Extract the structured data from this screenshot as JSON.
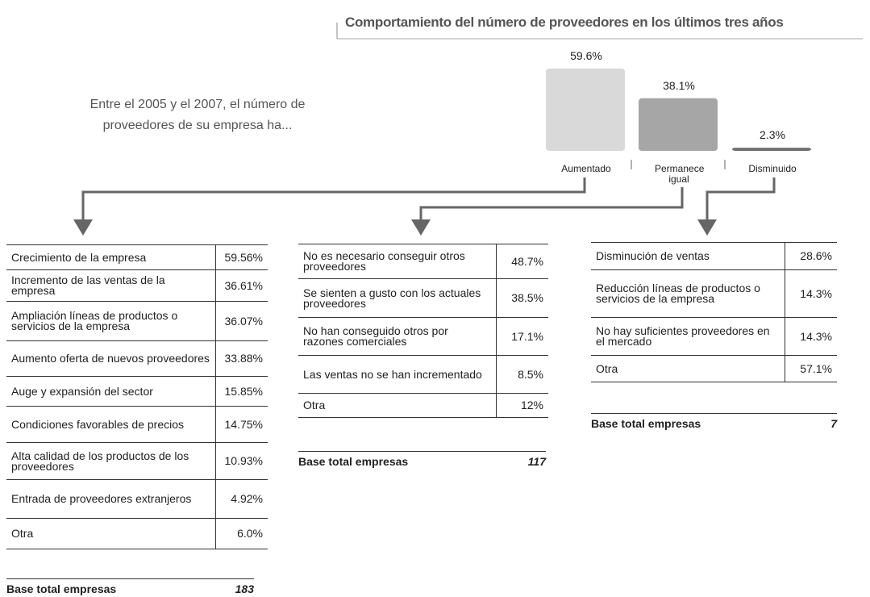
{
  "chart_data": {
    "type": "bar",
    "title": "Comportamiento del número de proveedores en los últimos tres años",
    "categories": [
      "Aumentado",
      "Permanece igual",
      "Disminuido"
    ],
    "values": [
      59.6,
      38.1,
      2.3
    ],
    "value_labels": [
      "59.6%",
      "38.1%",
      "2.3%"
    ],
    "colors": [
      "#d9d9d9",
      "#a6a6a6",
      "#6f6f6f"
    ]
  },
  "question": "Entre el 2005 y el 2007, el número de proveedores de su empresa ha...",
  "tables": [
    {
      "rows": [
        [
          "Crecimiento de la empresa",
          "59.56%"
        ],
        [
          "Incremento de las ventas de la empresa",
          "36.61%"
        ],
        [
          "Ampliación líneas de productos o servicios de la empresa",
          "36.07%"
        ],
        [
          "Aumento oferta de nuevos proveedores",
          "33.88%"
        ],
        [
          "Auge y expansión del sector",
          "15.85%"
        ],
        [
          "Condiciones favorables de precios",
          "14.75%"
        ],
        [
          "Alta calidad de los productos de los proveedores",
          "10.93%"
        ],
        [
          "Entrada de proveedores extranjeros",
          "4.92%"
        ],
        [
          "Otra",
          "6.0%"
        ]
      ],
      "base_label": "Base total empresas",
      "base_value": "183"
    },
    {
      "rows": [
        [
          "No es necesario conseguir otros proveedores",
          "48.7%"
        ],
        [
          "Se sienten a gusto con los actuales proveedores",
          "38.5%"
        ],
        [
          "No han conseguido otros por razones comerciales",
          "17.1%"
        ],
        [
          "Las ventas no se han incrementado",
          "8.5%"
        ],
        [
          "Otra",
          "12%"
        ]
      ],
      "base_label": "Base total empresas",
      "base_value": "117"
    },
    {
      "rows": [
        [
          "Disminución de ventas",
          "28.6%"
        ],
        [
          "Reducción líneas de productos o servicios de la empresa",
          "14.3%"
        ],
        [
          "No hay suficientes proveedores en el mercado",
          "14.3%"
        ],
        [
          "Otra",
          "57.1%"
        ]
      ],
      "base_label": "Base total empresas",
      "base_value": "7"
    }
  ]
}
